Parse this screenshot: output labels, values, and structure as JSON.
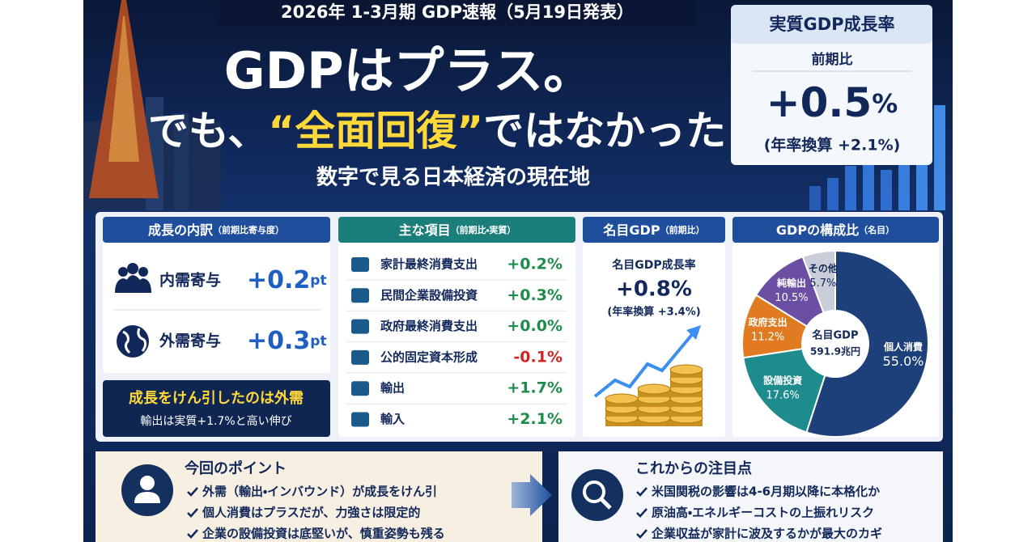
{
  "header": {
    "banner": "2026年 1-3月期 GDP速報（5月19日発表）",
    "title_line1": "GDPはプラス。",
    "title_line2_pre": "でも、",
    "title_line2_highlight": "“全面回復”",
    "title_line2_post": "ではなかった",
    "subtitle": "数字で見る日本経済の現在地"
  },
  "real_gdp": {
    "title": "実質GDP成長率",
    "basis": "前期比",
    "value": "+0.5",
    "unit": "%",
    "annualized": "(年率換算 +2.1%)"
  },
  "breakdown": {
    "title": "成長の内訳",
    "title_note": "（前期比寄与度）",
    "rows": [
      {
        "label": "内需寄与",
        "value": "+0.2",
        "unit": "pt"
      },
      {
        "label": "外需寄与",
        "value": "+0.3",
        "unit": "pt"
      }
    ],
    "callout_title": "成長をけん引したのは外需",
    "callout_text": "輸出は実質+1.7%と高い伸び"
  },
  "items": {
    "title": "主な項目",
    "title_note": "（前期比・実質）",
    "rows": [
      {
        "label": "家計最終消費支出",
        "value": "+0.2%"
      },
      {
        "label": "民間企業設備投資",
        "value": "+0.3%"
      },
      {
        "label": "政府最終消費支出",
        "value": "+0.0%"
      },
      {
        "label": "公的固定資本形成",
        "value": "-0.1%"
      },
      {
        "label": "輸出",
        "value": "+1.7%"
      },
      {
        "label": "輸入",
        "value": "+2.1%"
      }
    ]
  },
  "nominal": {
    "title": "名目GDP",
    "title_note": "（前期比）",
    "label": "名目GDP成長率",
    "value": "+0.8%",
    "annualized": "(年率換算 +3.4%)"
  },
  "composition": {
    "title": "GDPの構成比",
    "title_note": "（名目）",
    "center_label": "名目GDP",
    "center_value": "591.9兆円",
    "categories": [
      "個人消費",
      "設備投資",
      "政府支出",
      "純輸出",
      "その他"
    ],
    "values": [
      55.0,
      17.6,
      11.2,
      10.5,
      5.7
    ],
    "value_labels": [
      "55.0%",
      "17.6%",
      "11.2%",
      "10.5%",
      "5.7%"
    ],
    "colors": [
      "#1d3f7a",
      "#1e8c8c",
      "#e07b22",
      "#6a4fa3",
      "#c9ced8"
    ]
  },
  "points": {
    "title": "今回のポイント",
    "items": [
      "外需（輸出・インバウンド）が成長をけん引",
      "個人消費はプラスだが、力強さは限定的",
      "企業の設備投資は底堅いが、慎重姿勢も残る"
    ]
  },
  "outlook": {
    "title": "これからの注目点",
    "items": [
      "米国関税の影響は4-6月期以降に本格化か",
      "原油高・エネルギーコストの上振れリスク",
      "企業収益が家計に波及するかが最大のカギ"
    ]
  }
}
